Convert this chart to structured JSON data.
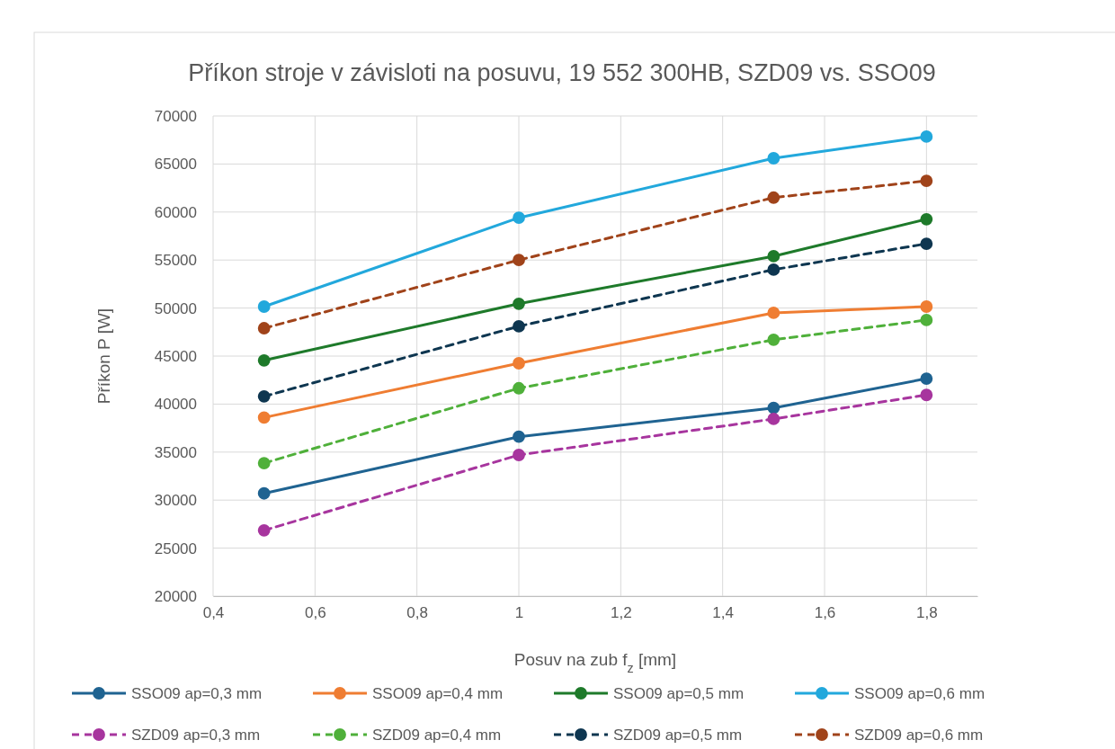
{
  "chart_data": {
    "type": "line",
    "title": "Příkon stroje v závisloti na posuvu, 19 552 300HB, SZD09 vs. SSO09",
    "xlabel": "Posuv na zub f$_{z}$ [mm]",
    "ylabel": "Příkon P [W]",
    "x": [
      0.5,
      1,
      1.5,
      1.8
    ],
    "xlim": [
      0.4,
      1.9
    ],
    "xticks": [
      {
        "value": 0.4,
        "label": "0,4"
      },
      {
        "value": 0.6,
        "label": "0,6"
      },
      {
        "value": 0.8,
        "label": "0,8"
      },
      {
        "value": 1,
        "label": "1"
      },
      {
        "value": 1.2,
        "label": "1,2"
      },
      {
        "value": 1.4,
        "label": "1,4"
      },
      {
        "value": 1.6,
        "label": "1,6"
      },
      {
        "value": 1.8,
        "label": "1,8"
      }
    ],
    "ylim": [
      20000,
      70000
    ],
    "yticks": [
      20000,
      25000,
      30000,
      35000,
      40000,
      45000,
      50000,
      55000,
      60000,
      65000,
      70000
    ],
    "grid": true,
    "legend": "bottom",
    "marker": "circle",
    "series": [
      {
        "name": "SSO09 ap=0,3 mm",
        "color": "#1f6391",
        "line_style": "solid",
        "values": [
          30700,
          36600,
          39600,
          42650
        ]
      },
      {
        "name": "SSO09 ap=0,4 mm",
        "color": "#ef7d32",
        "line_style": "solid",
        "values": [
          38600,
          44250,
          49500,
          50150
        ]
      },
      {
        "name": "SSO09 ap=0,5 mm",
        "color": "#1e7a2a",
        "line_style": "solid",
        "values": [
          44550,
          50450,
          55400,
          59250
        ]
      },
      {
        "name": "SSO09 ap=0,6 mm",
        "color": "#22a8dc",
        "line_style": "solid",
        "values": [
          50150,
          59400,
          65600,
          67850
        ]
      },
      {
        "name": "SZD09 ap=0,3 mm",
        "color": "#a7359e",
        "line_style": "dashed",
        "values": [
          26850,
          34700,
          38450,
          40950
        ]
      },
      {
        "name": "SZD09 ap=0,4 mm",
        "color": "#4fb03a",
        "line_style": "dashed",
        "values": [
          33850,
          41650,
          46700,
          48750
        ]
      },
      {
        "name": "SZD09 ap=0,5 mm",
        "color": "#0e3650",
        "line_style": "dashed",
        "values": [
          40800,
          48100,
          54000,
          56700
        ]
      },
      {
        "name": "SZD09 ap=0,6 mm",
        "color": "#a0431a",
        "line_style": "dashed",
        "values": [
          47900,
          55000,
          61500,
          63250
        ]
      }
    ]
  }
}
